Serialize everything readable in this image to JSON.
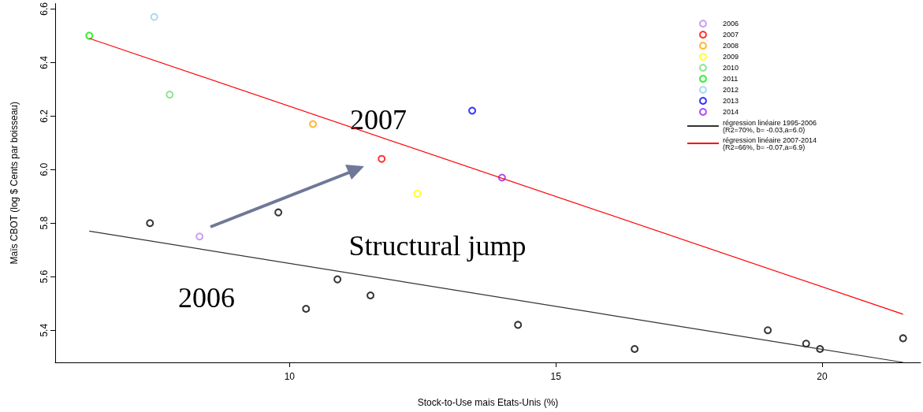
{
  "chart_data": {
    "type": "scatter",
    "xlabel": "Stock-to-Use mais Etats-Unis (%)",
    "ylabel": "Maïs CBOT (log $ Cents par boisseau)",
    "xlim": [
      5.6,
      21.85
    ],
    "xticks": [
      10,
      15,
      20
    ],
    "ylim": [
      5.28,
      6.62
    ],
    "yticks": [
      5.4,
      5.6,
      5.8,
      {
        "value": 6,
        "label": "6.0"
      },
      6.2,
      6.4,
      6.6
    ],
    "grid": false,
    "legend": "top right",
    "marker": "circle",
    "series": [
      {
        "color": "#000000",
        "x": [
          7.38,
          9.79,
          10.9,
          10.31,
          11.52,
          14.29,
          16.48,
          18.98,
          19.7,
          19.96,
          21.52
        ],
        "values": [
          5.8,
          5.84,
          5.59,
          5.48,
          5.53,
          5.42,
          5.33,
          5.4,
          5.35,
          5.33,
          5.37
        ]
      },
      {
        "name": "2006",
        "color": "#bb88ee",
        "x": [
          8.31
        ],
        "values": [
          5.75
        ]
      },
      {
        "name": "2007",
        "color": "#ff0000",
        "x": [
          11.73
        ],
        "values": [
          6.04
        ]
      },
      {
        "name": "2008",
        "color": "#ffa500",
        "x": [
          10.44
        ],
        "values": [
          6.17
        ]
      },
      {
        "name": "2009",
        "color": "#ffff00",
        "x": [
          12.4
        ],
        "values": [
          5.91
        ]
      },
      {
        "name": "2010",
        "color": "#77dd77",
        "x": [
          7.75
        ],
        "values": [
          6.28
        ]
      },
      {
        "name": "2011",
        "color": "#00ee00",
        "x": [
          6.24
        ],
        "values": [
          6.5
        ]
      },
      {
        "name": "2012",
        "color": "#99ccee",
        "x": [
          7.46
        ],
        "values": [
          6.57
        ]
      },
      {
        "name": "2013",
        "color": "#0000ff",
        "x": [
          13.43
        ],
        "values": [
          6.22
        ]
      },
      {
        "name": "2014",
        "color": "#9922ee",
        "x": [
          13.99
        ],
        "values": [
          5.97
        ]
      },
      {
        "name": "régression linéaire 1995-2006\n(R2=70%, b= -0.03,a=6.0)",
        "type": "line",
        "marker": "none",
        "color": "#333333",
        "x": [
          6.24,
          21.52
        ],
        "values": [
          5.77,
          5.28
        ]
      },
      {
        "name": "régression linéaire 2007-2014\n(R2=66%, b= -0.07,a=6.9)",
        "type": "line",
        "marker": "none",
        "color": "#ff0000",
        "x": [
          6.24,
          21.52
        ],
        "values": [
          6.49,
          5.46
        ]
      }
    ],
    "annotations": [
      "2007",
      "2006",
      "Structural jump"
    ]
  }
}
